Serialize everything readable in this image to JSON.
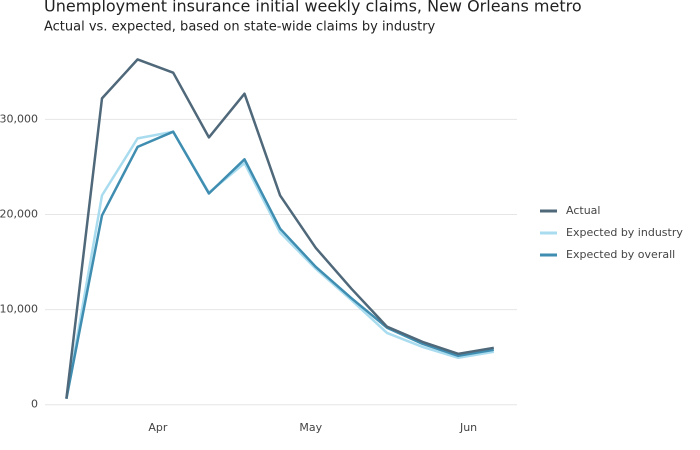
{
  "chart_data": {
    "type": "line",
    "title": "Unemployment insurance initial weekly claims, New Orleans metro",
    "subtitle": "Actual vs. expected, based on state-wide claims by industry",
    "x": [
      0,
      1,
      2,
      3,
      4,
      5,
      6,
      7,
      8,
      9,
      10,
      11,
      12
    ],
    "xlim": [
      -0.6,
      12.65
    ],
    "xticks": [
      {
        "value": 2.57,
        "label": "Apr"
      },
      {
        "value": 6.86,
        "label": "May"
      },
      {
        "value": 11.29,
        "label": "Jun"
      }
    ],
    "ylim": [
      -1500,
      37500
    ],
    "yticks": [
      0,
      {
        "value": 10000,
        "label": "10,000"
      },
      {
        "value": 20000,
        "label": "20,000"
      },
      {
        "value": 30000,
        "label": "30,000"
      }
    ],
    "grid": true,
    "legend": "right",
    "series": [
      {
        "name": "Actual",
        "color": "#4f687a",
        "values": [
          630,
          32200,
          36300,
          34900,
          28100,
          32700,
          22000,
          16500,
          12200,
          8200,
          6600,
          5350,
          5980
        ]
      },
      {
        "name": "Expected by industry",
        "color": "#a9dcef",
        "values": [
          630,
          22000,
          28000,
          28700,
          22300,
          25400,
          18100,
          14300,
          11000,
          7550,
          6080,
          4930,
          5560
        ]
      },
      {
        "name": "Expected by overall",
        "color": "#3f8db0",
        "values": [
          630,
          19900,
          27100,
          28700,
          22200,
          25800,
          18500,
          14500,
          11200,
          8100,
          6400,
          5140,
          5770
        ]
      }
    ]
  }
}
